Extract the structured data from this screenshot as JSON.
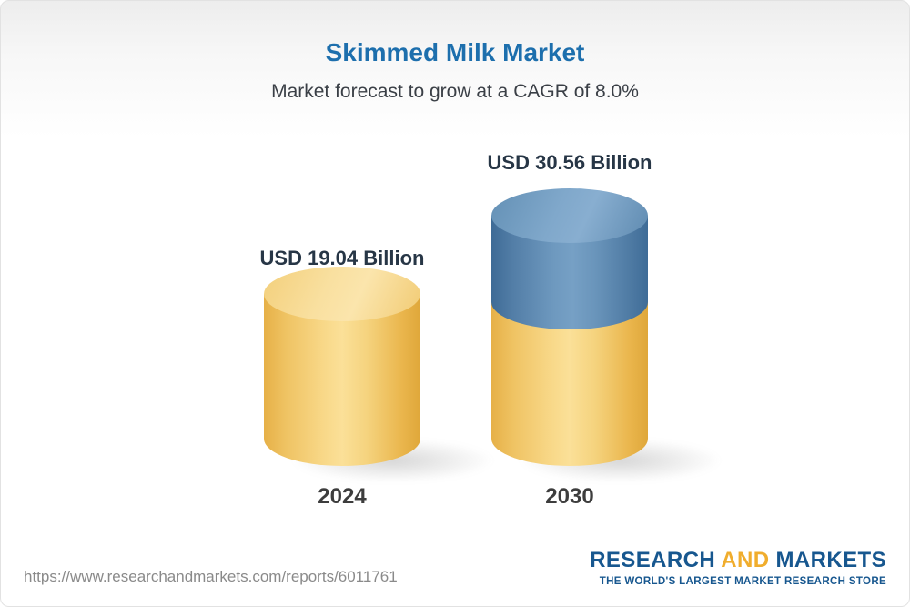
{
  "chart_data": {
    "type": "bar",
    "style": "3d-cylinder",
    "title": "Skimmed Milk Market",
    "subtitle": "Market forecast to grow at a CAGR of 8.0%",
    "unit": "USD Billion",
    "cagr": "8.0%",
    "categories": [
      "2024",
      "2030"
    ],
    "values": [
      19.04,
      30.56
    ],
    "bars": [
      {
        "category": "2024",
        "value": 19.04,
        "label": "USD 19.04 Billion",
        "segments": [
          {
            "name": "2024-value",
            "value": 19.04,
            "color": "#F6CE73"
          }
        ]
      },
      {
        "category": "2030",
        "value": 30.56,
        "label": "USD 30.56 Billion",
        "segments": [
          {
            "name": "base",
            "value": 19.04,
            "color": "#F3C55F"
          },
          {
            "name": "growth",
            "value": 11.52,
            "color": "#6592BA"
          }
        ]
      }
    ],
    "legend": "none",
    "grid": false,
    "axes": "none",
    "colors": {
      "title": "#1d6fad",
      "gold": "#F5CE6E",
      "blue": "#6592BA"
    }
  },
  "footer": {
    "url": "https://www.researchandmarkets.com/reports/6011761",
    "logo": {
      "research": "RESEARCH",
      "and": "AND",
      "markets": "MARKETS",
      "tagline": "THE WORLD'S LARGEST MARKET RESEARCH STORE"
    }
  }
}
